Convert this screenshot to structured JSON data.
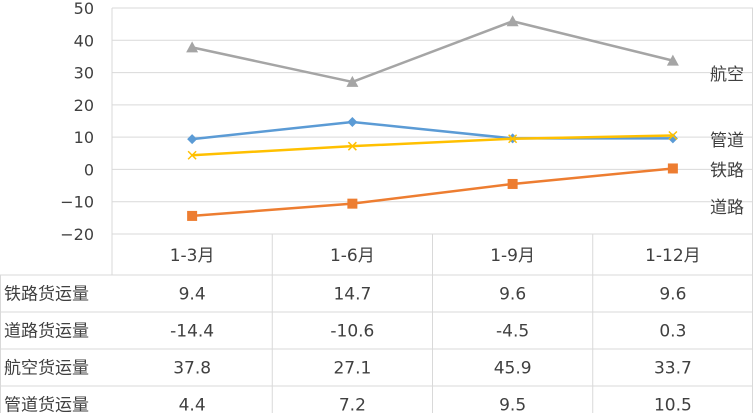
{
  "chart_data": {
    "type": "line",
    "categories": [
      "1-3月",
      "1-6月",
      "1-9月",
      "1-12月"
    ],
    "ylim": [
      -20,
      50
    ],
    "yticks": [
      50,
      40,
      30,
      20,
      10,
      0,
      -10,
      -20
    ],
    "grid": true,
    "data_table": true,
    "legend": "series labels at right end of lines",
    "series": [
      {
        "name": "铁路",
        "row_label": "铁路货运量",
        "values": [
          9.4,
          14.7,
          9.6,
          9.6
        ],
        "display": [
          "9.4",
          "14.7",
          "9.6",
          "9.6"
        ],
        "color": "#5B9BD5",
        "marker": "diamond"
      },
      {
        "name": "道路",
        "row_label": "道路货运量",
        "values": [
          -14.4,
          -10.6,
          -4.5,
          0.3
        ],
        "display": [
          "-14.4",
          "-10.6",
          "-4.5",
          "0.3"
        ],
        "color": "#ED7D31",
        "marker": "square"
      },
      {
        "name": "航空",
        "row_label": "航空货运量",
        "values": [
          37.8,
          27.1,
          45.9,
          33.7
        ],
        "display": [
          "37.8",
          "27.1",
          "45.9",
          "33.7"
        ],
        "color": "#A5A5A5",
        "marker": "triangle"
      },
      {
        "name": "管道",
        "row_label": "管道货运量",
        "values": [
          4.4,
          7.2,
          9.5,
          10.5
        ],
        "display": [
          "4.4",
          "7.2",
          "9.5",
          "10.5"
        ],
        "color": "#FFC000",
        "marker": "x"
      }
    ]
  }
}
